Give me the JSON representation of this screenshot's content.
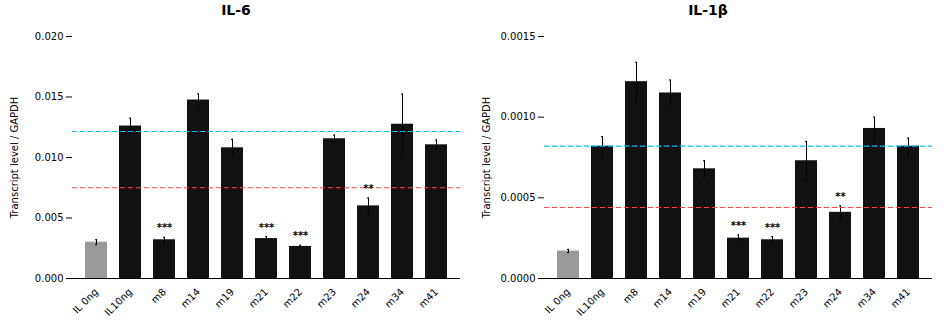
{
  "chart_data": [
    {
      "type": "bar",
      "title": "IL-6",
      "categories": [
        "IL 0ng",
        "IL10ng",
        "m8",
        "m14",
        "m19",
        "m21",
        "m22",
        "m23",
        "m24",
        "m34",
        "m41"
      ],
      "values": [
        0.003,
        0.0126,
        0.0032,
        0.01475,
        0.0108,
        0.0033,
        0.00265,
        0.01155,
        0.006,
        0.01275,
        0.01105
      ],
      "errors": [
        0.0002,
        0.00065,
        0.0002,
        0.0005,
        0.0007,
        0.00015,
        0.0001,
        0.0003,
        0.00065,
        0.0025,
        0.0004
      ],
      "colors": [
        "#999999",
        "#111111",
        "#111111",
        "#111111",
        "#111111",
        "#111111",
        "#111111",
        "#111111",
        "#111111",
        "#111111",
        "#111111"
      ],
      "reference_lines": [
        {
          "value": 0.01215,
          "color": "#00BFFF",
          "line_style": "dashed"
        },
        {
          "value": 0.0075,
          "color": "#FF4444",
          "line_style": "dashed"
        }
      ],
      "annotations": [
        {
          "category": "m8",
          "text": "***"
        },
        {
          "category": "m21",
          "text": "***"
        },
        {
          "category": "m22",
          "text": "***"
        },
        {
          "category": "m24",
          "text": "**"
        }
      ],
      "ylabel": "Transcript level / GAPDH",
      "ylim": [
        0,
        0.02
      ],
      "yticks": [
        {
          "value": 0,
          "label": "0.000"
        },
        0.005,
        {
          "value": 0.01,
          "label": "0.010"
        },
        0.015,
        {
          "value": 0.02,
          "label": "0.020"
        }
      ],
      "grid": false
    },
    {
      "type": "bar",
      "title": "IL-1β",
      "categories": [
        "IL 0ng",
        "IL10ng",
        "m8",
        "m14",
        "m19",
        "m21",
        "m22",
        "m23",
        "m24",
        "m34",
        "m41"
      ],
      "values": [
        0.00017,
        0.00082,
        0.00122,
        0.00115,
        0.00068,
        0.00025,
        0.00024,
        0.00073,
        0.00041,
        0.00093,
        0.00082
      ],
      "errors": [
        1e-05,
        6e-05,
        0.00012,
        8e-05,
        5e-05,
        2e-05,
        2e-05,
        0.00012,
        4e-05,
        7e-05,
        5e-05
      ],
      "colors": [
        "#999999",
        "#111111",
        "#111111",
        "#111111",
        "#111111",
        "#111111",
        "#111111",
        "#111111",
        "#111111",
        "#111111",
        "#111111"
      ],
      "reference_lines": [
        {
          "value": 0.00082,
          "color": "#00BFFF",
          "line_style": "dashed"
        },
        {
          "value": 0.00044,
          "color": "#FF4444",
          "line_style": "dashed"
        }
      ],
      "annotations": [
        {
          "category": "m21",
          "text": "***"
        },
        {
          "category": "m22",
          "text": "***"
        },
        {
          "category": "m24",
          "text": "**"
        }
      ],
      "ylabel": "Transcript level / GAPDH",
      "ylim": [
        0,
        0.0015
      ],
      "yticks": [
        {
          "value": 0,
          "label": "0.0000"
        },
        0.0005,
        {
          "value": 0.001,
          "label": "0.0010"
        },
        0.0015
      ],
      "grid": false
    }
  ]
}
